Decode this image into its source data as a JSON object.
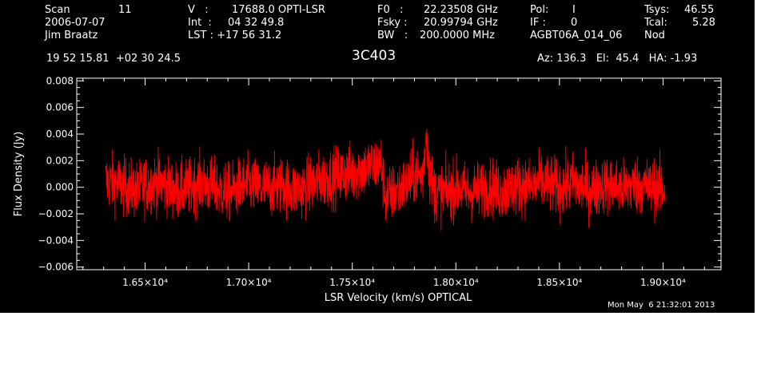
{
  "header": {
    "col1": {
      "scan_label": "Scan",
      "scan_value": "11",
      "date": "2006-07-07",
      "observer": "Jim Braatz"
    },
    "col2": {
      "v_label": "V   :",
      "v_value": "17688.0 OPTI-LSR",
      "int_label": "Int  :",
      "int_value": "04 32 49.8",
      "lst_label": "LST : +17 56 31.2"
    },
    "col3": {
      "f0_label": "F0   :",
      "f0_value": "22.23508 GHz",
      "fsky_label": "Fsky :",
      "fsky_value": "20.99794 GHz",
      "bw_label": "BW   :",
      "bw_value": "200.0000 MHz"
    },
    "col4": {
      "pol_label": "Pol:",
      "pol_value": "I",
      "if_label": "IF :",
      "if_value": "0",
      "project": "AGBT06A_014_06"
    },
    "col5": {
      "tsys_label": "Tsys:",
      "tsys_value": "46.55",
      "tcal_label": "Tcal:",
      "tcal_value": "5.28",
      "mode": "Nod"
    },
    "coords": "19 52 15.81  +02 30 24.5",
    "source": "3C403",
    "azel": "Az: 136.3   El:  45.4   HA: -1.93"
  },
  "timestamp": "Mon May  6 21:32:01 2013",
  "colors": {
    "background": "#000000",
    "foreground": "#ffffff",
    "trace": "#ff0000"
  },
  "chart_data": {
    "type": "line",
    "title": "3C403",
    "xlabel": "LSR Velocity (km/s) OPTICAL",
    "ylabel": "Flux Density (Jy)",
    "xlim": [
      16170,
      19280
    ],
    "ylim": [
      -0.0062,
      0.0082
    ],
    "xticks": [
      {
        "value": 16500,
        "label": "1.65×10⁴"
      },
      {
        "value": 17000,
        "label": "1.70×10⁴"
      },
      {
        "value": 17500,
        "label": "1.75×10⁴"
      },
      {
        "value": 18000,
        "label": "1.80×10⁴"
      },
      {
        "value": 18500,
        "label": "1.85×10⁴"
      },
      {
        "value": 19000,
        "label": "1.90×10⁴"
      }
    ],
    "yticks": [
      {
        "value": -0.006,
        "label": "−0.006"
      },
      {
        "value": -0.004,
        "label": "−0.004"
      },
      {
        "value": -0.002,
        "label": "−0.002"
      },
      {
        "value": 0.0,
        "label": "0.000"
      },
      {
        "value": 0.002,
        "label": "0.002"
      },
      {
        "value": 0.004,
        "label": "0.004"
      },
      {
        "value": 0.006,
        "label": "0.006"
      },
      {
        "value": 0.008,
        "label": "0.008"
      }
    ],
    "series": [
      {
        "color": "#ff0000",
        "x": [
          16310,
          16360,
          16410,
          16460,
          16510,
          16560,
          16610,
          16660,
          16710,
          16760,
          16810,
          16860,
          16910,
          16960,
          17010,
          17060,
          17110,
          17160,
          17210,
          17260,
          17310,
          17360,
          17410,
          17460,
          17510,
          17560,
          17610,
          17640,
          17660,
          17700,
          17760,
          17800,
          17840,
          17860,
          17870,
          17880,
          17900,
          17960,
          18010,
          18060,
          18110,
          18160,
          18210,
          18260,
          18310,
          18360,
          18410,
          18460,
          18510,
          18560,
          18610,
          18660,
          18710,
          18760,
          18810,
          18860,
          18910,
          18960,
          19010
        ],
        "y": [
          0.0005,
          0.0003,
          0.0,
          -0.0002,
          0.0002,
          0.0004,
          0.0001,
          -0.0003,
          0.0,
          0.0003,
          0.0001,
          -0.0002,
          -0.0004,
          0.0001,
          0.0002,
          -0.0001,
          0.0,
          0.0002,
          -0.0002,
          -0.0001,
          0.0003,
          0.0006,
          0.0008,
          0.001,
          0.0012,
          0.0014,
          0.0017,
          0.0018,
          -0.0008,
          -0.0004,
          0.0002,
          0.001,
          0.0008,
          0.0045,
          0.0012,
          0.0005,
          -0.0005,
          -0.0003,
          0.0,
          -0.0004,
          -0.0002,
          0.0001,
          -0.0003,
          -0.0001,
          0.0002,
          0.0,
          0.0004,
          0.0002,
          -0.0001,
          0.0003,
          0.0,
          -0.0002,
          0.0002,
          0.0001,
          -0.0001,
          0.0002,
          0.0001,
          0.0,
          -0.0002
        ]
      }
    ]
  }
}
